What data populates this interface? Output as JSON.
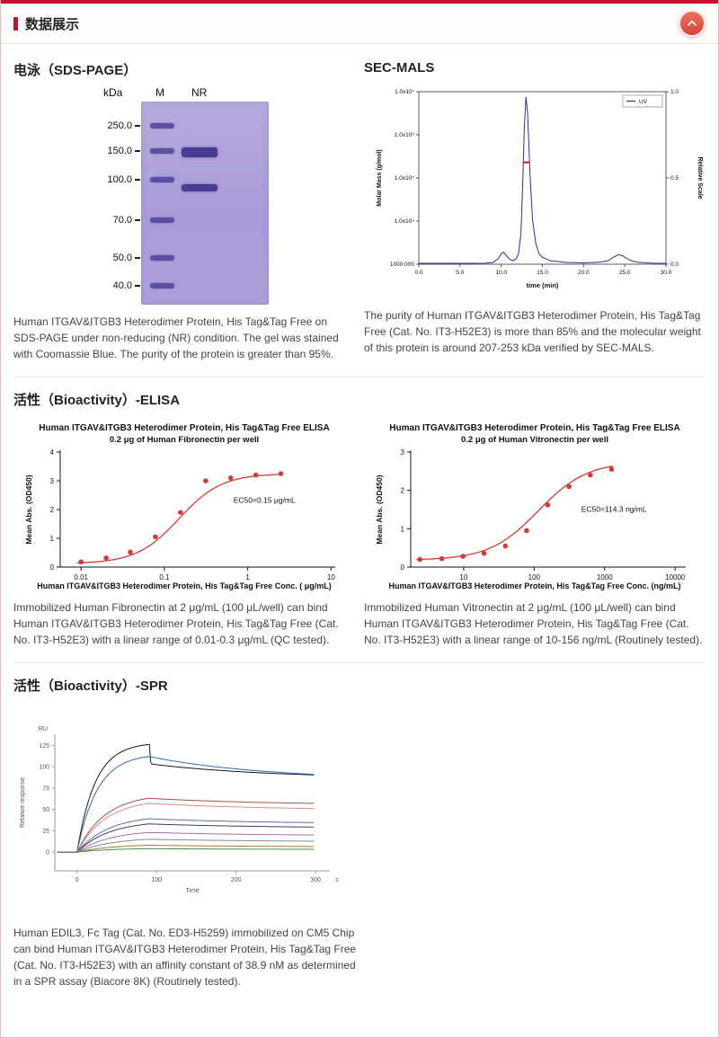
{
  "theme": {
    "accent": "#c8102e"
  },
  "header": {
    "title": "数据展示"
  },
  "sections": {
    "sds_page": {
      "heading": "电泳（SDS-PAGE）",
      "gel": {
        "unit_label": "kDa",
        "lanes": [
          "M",
          "NR"
        ],
        "markers": [
          {
            "label": "250.0",
            "f": 0.12
          },
          {
            "label": "150.0",
            "f": 0.243
          },
          {
            "label": "100.0",
            "f": 0.385
          },
          {
            "label": "70.0",
            "f": 0.584
          },
          {
            "label": "50.0",
            "f": 0.77
          },
          {
            "label": "40.0",
            "f": 0.907
          }
        ],
        "nr_bands": [
          {
            "f": 0.252,
            "h": 11
          },
          {
            "f": 0.425,
            "h": 8
          }
        ]
      },
      "caption": "Human ITGAV&ITGB3 Heterodimer Protein, His Tag&Tag Free on SDS-PAGE under non-reducing (NR) condition. The gel was stained with Coomassie Blue. The purity of the protein is greater than 95%."
    },
    "sec_mals": {
      "heading": "SEC-MALS",
      "caption": "The purity of Human ITGAV&ITGB3 Heterodimer Protein, His Tag&Tag Free (Cat. No. IT3-H52E3) is more than 85% and the molecular weight of this protein is around 207-253 kDa verified by SEC-MALS."
    },
    "elisa": {
      "heading": "活性（Bioactivity）-ELISA",
      "left_caption": "Immobilized Human Fibronectin at 2 μg/mL (100 μL/well) can bind Human ITGAV&ITGB3 Heterodimer Protein, His Tag&Tag Free (Cat. No. IT3-H52E3) with a linear range of 0.01-0.3 μg/mL (QC tested).",
      "right_caption": "Immobilized Human Vitronectin at 2 μg/mL (100 μL/well) can bind Human ITGAV&ITGB3 Heterodimer Protein, His Tag&Tag Free (Cat. No. IT3-H52E3) with a linear range of 10-156 ng/mL (Routinely tested)."
    },
    "spr": {
      "heading": "活性（Bioactivity）-SPR",
      "caption": "Human EDIL3, Fc Tag (Cat. No. ED3-H5259) immobilized on CM5 Chip can bind Human ITGAV&ITGB3 Heterodimer Protein, His Tag&Tag Free (Cat. No. IT3-H52E3) with an affinity constant of 38.9 nM as determined in a SPR assay (Biacore 8K) (Routinely tested)."
    }
  },
  "chart_data": [
    {
      "id": "sec-mals",
      "type": "line",
      "title": "SEC-MALS",
      "xlabel": "time (min)",
      "ylabel_left": "Molar Mass (g/mol)",
      "ylabel_right": "Relative Scale",
      "legend": [
        "UV"
      ],
      "xlim": [
        0,
        30
      ],
      "x_ticks": [
        0,
        5,
        10,
        15,
        20,
        25,
        30
      ],
      "x_tick_labels": [
        "0.0",
        "5.0",
        "10.0",
        "15.0",
        "20.0",
        "25.0",
        "30.0"
      ],
      "y_left_tick_labels": [
        "1.0x10⁷",
        "1.0x10⁶",
        "1.0x10⁵",
        "1.0x10⁴",
        "1000.000"
      ],
      "y_right_tick_labels": [
        "1.0",
        "0.5",
        "0.0"
      ],
      "uv_trace": {
        "x": [
          0,
          2,
          4,
          6,
          8,
          9,
          9.6,
          10,
          10.3,
          10.6,
          11,
          11.4,
          11.8,
          12.1,
          12.4,
          12.6,
          12.8,
          13,
          13.2,
          13.5,
          13.8,
          14.2,
          14.6,
          15,
          15.5,
          16,
          17,
          18,
          20,
          22,
          23,
          23.6,
          24.2,
          24.7,
          25.2,
          25.8,
          26.5,
          27.5,
          28.5,
          30
        ],
        "y": [
          0.005,
          0.005,
          0.005,
          0.005,
          0.006,
          0.01,
          0.03,
          0.06,
          0.07,
          0.05,
          0.03,
          0.02,
          0.03,
          0.06,
          0.18,
          0.45,
          0.78,
          0.97,
          0.88,
          0.52,
          0.26,
          0.12,
          0.06,
          0.04,
          0.03,
          0.02,
          0.015,
          0.01,
          0.008,
          0.012,
          0.02,
          0.04,
          0.055,
          0.05,
          0.035,
          0.02,
          0.012,
          0.008,
          0.006,
          0.005
        ]
      },
      "molar_mass_marker": {
        "x": [
          12.7,
          13.4
        ],
        "rel_y": 0.59,
        "mass_kda": "207-253"
      }
    },
    {
      "id": "elisa-fibronectin",
      "type": "scatter",
      "title": "Human ITGAV&ITGB3 Heterodimer Protein, His Tag&Tag Free ELISA",
      "subtitle": "0.2 μg of Human Fibronectin per well",
      "xlabel": "Human ITGAV&ITGB3 Heterodimer Protein, His Tag&Tag Free Conc. ( μg/mL)",
      "ylabel": "Mean Abs. (OD450)",
      "x_scale": "log",
      "log_domain": [
        -2.25,
        1.05
      ],
      "x_ticks": [
        0.01,
        0.1,
        1,
        10
      ],
      "x_tick_labels": [
        "0.01",
        "0.1",
        "1",
        "10"
      ],
      "ylim": [
        0,
        4
      ],
      "y_ticks": [
        0,
        1,
        2,
        3,
        4
      ],
      "annotation": "EC50=0.15 μg/mL",
      "annotation_pos": [
        0.63,
        0.44
      ],
      "points": {
        "x": [
          0.01,
          0.02,
          0.039,
          0.078,
          0.156,
          0.313,
          0.625,
          1.25,
          2.5
        ],
        "y": [
          0.18,
          0.32,
          0.52,
          1.05,
          1.9,
          3.0,
          3.1,
          3.2,
          3.25
        ]
      },
      "fit": {
        "bottom": 0.12,
        "top": 3.25,
        "ec50": 0.15,
        "hill": 1.7
      }
    },
    {
      "id": "elisa-vitronectin",
      "type": "scatter",
      "title": "Human ITGAV&ITGB3 Heterodimer Protein, His Tag&Tag Free ELISA",
      "subtitle": "0.2 μg of Human Vitronectin per well",
      "xlabel": "Human ITGAV&ITGB3 Heterodimer Protein, His Tag&Tag Free Conc. (ng/mL)",
      "ylabel": "Mean Abs. (OD450)",
      "x_scale": "log",
      "log_domain": [
        0.25,
        4.15
      ],
      "x_ticks": [
        10,
        100,
        1000,
        10000
      ],
      "x_tick_labels": [
        "10",
        "100",
        "1000",
        "10000"
      ],
      "ylim": [
        0,
        3
      ],
      "y_ticks": [
        0,
        1,
        2,
        3
      ],
      "annotation": "EC50=114.3 ng/mL",
      "annotation_pos": [
        0.62,
        0.52
      ],
      "points": {
        "x": [
          2.4,
          4.9,
          9.8,
          19.5,
          39.1,
          78.1,
          156.3,
          312.5,
          625,
          1250
        ],
        "y": [
          0.2,
          0.22,
          0.28,
          0.36,
          0.55,
          0.95,
          1.62,
          2.1,
          2.4,
          2.55
        ]
      },
      "fit": {
        "bottom": 0.18,
        "top": 2.75,
        "ec50": 114.3,
        "hill": 1.25
      }
    },
    {
      "id": "spr",
      "type": "line",
      "y_unit": "RU",
      "ylabel": "Relative response",
      "xlabel": "Time",
      "x_unit": "s",
      "xlim": [
        -28,
        318
      ],
      "ylim": [
        -22,
        138
      ],
      "x_ticks": [
        0,
        100,
        200,
        300
      ],
      "y_ticks": [
        0,
        25,
        50,
        75,
        100,
        125
      ],
      "association_end": 90,
      "series": [
        {
          "color": "#17171c",
          "peak": 126,
          "post": 103,
          "end": 86,
          "spike": true
        },
        {
          "color": "#2e6da4",
          "peak": 112,
          "end": 84
        },
        {
          "color": "#b04a45",
          "peak": 63,
          "end": 55
        },
        {
          "color": "#e08a84",
          "peak": 57,
          "end": 49
        },
        {
          "color": "#5b6e95",
          "peak": 39,
          "end": 33
        },
        {
          "color": "#3d3d5c",
          "peak": 33,
          "end": 28
        },
        {
          "color": "#b06ca0",
          "peak": 23,
          "end": 19
        },
        {
          "color": "#8a8a8a",
          "peak": 15,
          "end": 12
        },
        {
          "color": "#a0763c",
          "peak": 8,
          "end": 6
        },
        {
          "color": "#4a8a5a",
          "peak": 4,
          "end": 3
        }
      ]
    }
  ]
}
